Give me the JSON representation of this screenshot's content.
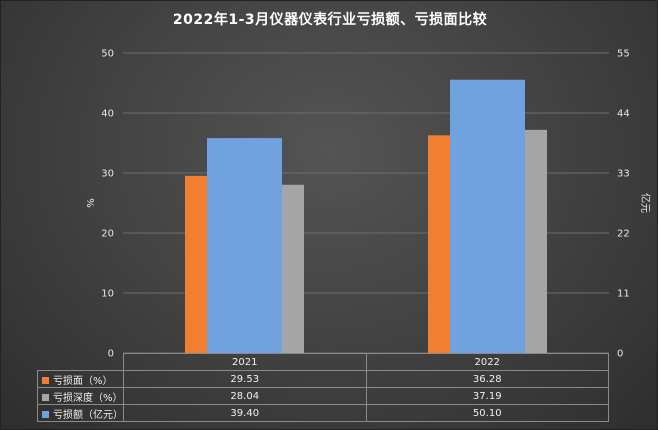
{
  "chart_data": {
    "type": "bar",
    "title": "2022年1-3月仪器仪表行业亏损额、亏损面比较",
    "categories": [
      "2021",
      "2022"
    ],
    "ylabel": "%",
    "ylabel_right": "亿元",
    "ylim": [
      0,
      50
    ],
    "ylim_right": [
      0,
      55
    ],
    "yticks": [
      "0",
      "10",
      "20",
      "30",
      "40",
      "50"
    ],
    "yticks_right": [
      "0",
      "11",
      "22",
      "33",
      "44",
      "55"
    ],
    "grid": true,
    "legend": "table-bottom",
    "series": [
      {
        "name": "亏损面（%）",
        "values": [
          29.53,
          36.28
        ],
        "display": [
          "29.53",
          "36.28"
        ],
        "axis": "left",
        "color": "#f07f32"
      },
      {
        "name": "亏损深度（%）",
        "values": [
          28.04,
          37.19
        ],
        "display": [
          "28.04",
          "37.19"
        ],
        "axis": "left",
        "color": "#a5a5a5"
      },
      {
        "name": "亏损额（亿元）",
        "values": [
          39.4,
          50.1
        ],
        "display": [
          "39.40",
          "50.10"
        ],
        "axis": "right",
        "color": "#6fa2de"
      }
    ]
  }
}
